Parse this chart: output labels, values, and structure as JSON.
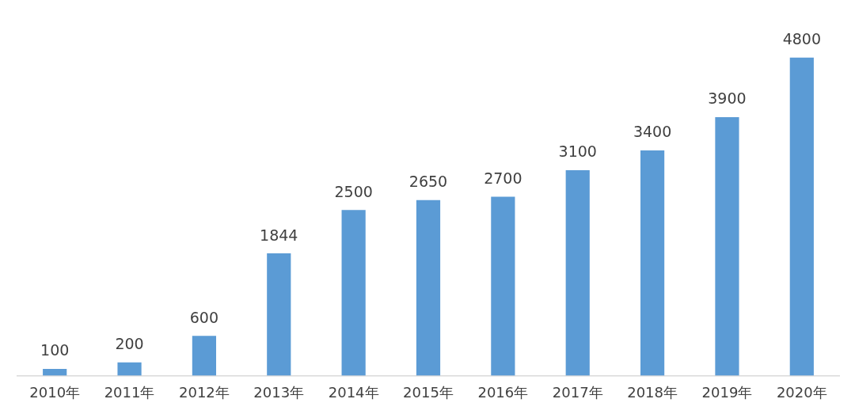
{
  "chart_data": {
    "type": "bar",
    "categories": [
      "2010年",
      "2011年",
      "2012年",
      "2013年",
      "2014年",
      "2015年",
      "2016年",
      "2017年",
      "2018年",
      "2019年",
      "2020年"
    ],
    "values": [
      100,
      200,
      600,
      1844,
      2500,
      2650,
      2700,
      3100,
      3400,
      3900,
      4800
    ],
    "color": "#5b9bd5",
    "data_labels": true,
    "grid": false,
    "legend": false
  }
}
